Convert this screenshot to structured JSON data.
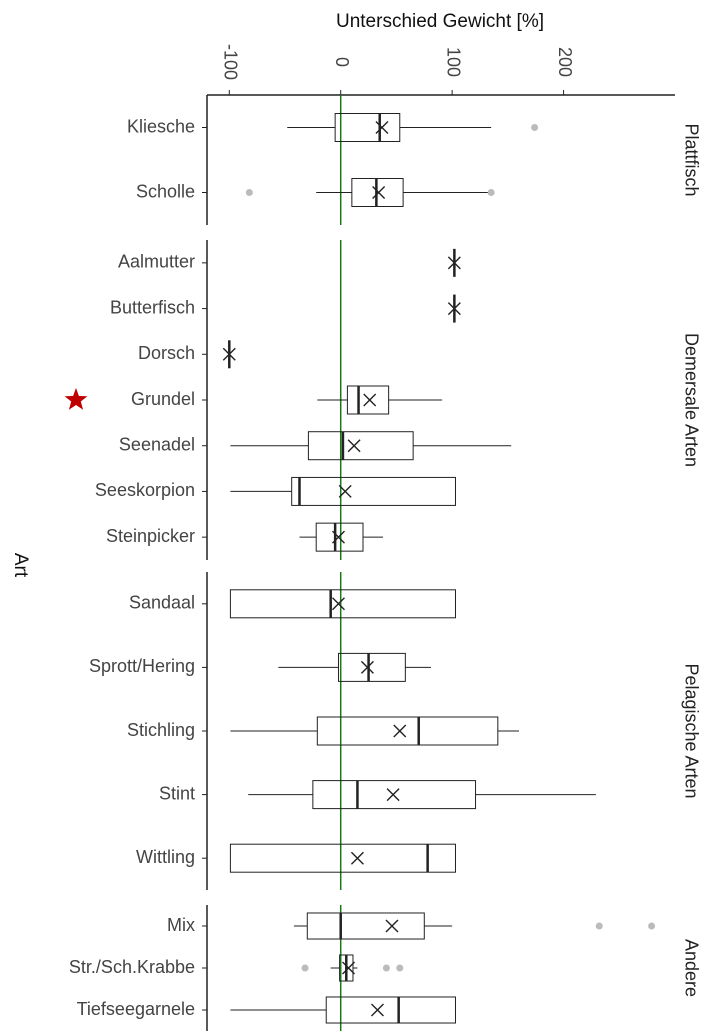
{
  "chart_data": {
    "type": "box",
    "x_label": "Unterschied Gewicht [%]",
    "y_label": "Art",
    "xlim": [
      -120,
      300
    ],
    "xticks": [
      -100,
      0,
      100,
      200
    ],
    "reference_line": 0,
    "reference_color": "#1a7a1a",
    "outlier_color": "#bbbbbb",
    "highlight_color": "#c00000",
    "highlight": "Grundel",
    "groups": [
      {
        "label": "Plattfisch",
        "categories": [
          "Kliesche",
          "Scholle"
        ],
        "boxes": [
          {
            "min": -48,
            "q1": -5,
            "median": 35,
            "q3": 53,
            "max": 135,
            "mean": 37,
            "outliers": [
              174
            ]
          },
          {
            "min": -22,
            "q1": 10,
            "median": 32,
            "q3": 56,
            "max": 134,
            "mean": 34,
            "outliers": [
              -82,
              135
            ]
          }
        ]
      },
      {
        "label": "Demersale Arten",
        "categories": [
          "Aalmutter",
          "Butterfisch",
          "Dorsch",
          "Grundel",
          "Seenadel",
          "Seeskorpion",
          "Steinpicker"
        ],
        "boxes": [
          {
            "min": 102,
            "q1": 102,
            "median": 102,
            "q3": 102,
            "max": 102,
            "mean": 102,
            "outliers": []
          },
          {
            "min": 102,
            "q1": 102,
            "median": 102,
            "q3": 102,
            "max": 102,
            "mean": 102,
            "outliers": []
          },
          {
            "min": -100,
            "q1": -100,
            "median": -100,
            "q3": -100,
            "max": -100,
            "mean": -100,
            "outliers": []
          },
          {
            "min": -21,
            "q1": 6,
            "median": 16,
            "q3": 43,
            "max": 91,
            "mean": 26,
            "outliers": []
          },
          {
            "min": -99,
            "q1": -29,
            "median": 2,
            "q3": 65,
            "max": 153,
            "mean": 12,
            "outliers": []
          },
          {
            "min": -99,
            "q1": -44,
            "median": -37,
            "q3": 103,
            "max": 103,
            "mean": 4,
            "outliers": []
          },
          {
            "min": -37,
            "q1": -22,
            "median": -5,
            "q3": 20,
            "max": 38,
            "mean": -2,
            "outliers": []
          }
        ]
      },
      {
        "label": "Pelagische Arten",
        "categories": [
          "Sandaal",
          "Sprott/Hering",
          "Stichling",
          "Stint",
          "Wittling"
        ],
        "boxes": [
          {
            "min": -99,
            "q1": -99,
            "median": -9,
            "q3": 103,
            "max": 103,
            "mean": -2,
            "outliers": []
          },
          {
            "min": -56,
            "q1": -2,
            "median": 25,
            "q3": 58,
            "max": 81,
            "mean": 24,
            "outliers": []
          },
          {
            "min": -99,
            "q1": -21,
            "median": 70,
            "q3": 141,
            "max": 160,
            "mean": 53,
            "outliers": []
          },
          {
            "min": -83,
            "q1": -25,
            "median": 15,
            "q3": 121,
            "max": 229,
            "mean": 47,
            "outliers": []
          },
          {
            "min": -99,
            "q1": -99,
            "median": 78,
            "q3": 103,
            "max": 103,
            "mean": 15,
            "outliers": []
          }
        ]
      },
      {
        "label": "Andere",
        "categories": [
          "Mix",
          "Str./Sch.Krabbe",
          "Tiefseegarnele"
        ],
        "boxes": [
          {
            "min": -42,
            "q1": -30,
            "median": 0,
            "q3": 75,
            "max": 100,
            "mean": 46,
            "outliers": [
              232,
              279
            ]
          },
          {
            "min": -9,
            "q1": -1,
            "median": 5,
            "q3": 11,
            "max": 15,
            "mean": 7,
            "outliers": [
              -32,
              41,
              53
            ]
          },
          {
            "min": -99,
            "q1": -13,
            "median": 52,
            "q3": 103,
            "max": 103,
            "mean": 33,
            "outliers": []
          }
        ]
      }
    ]
  }
}
